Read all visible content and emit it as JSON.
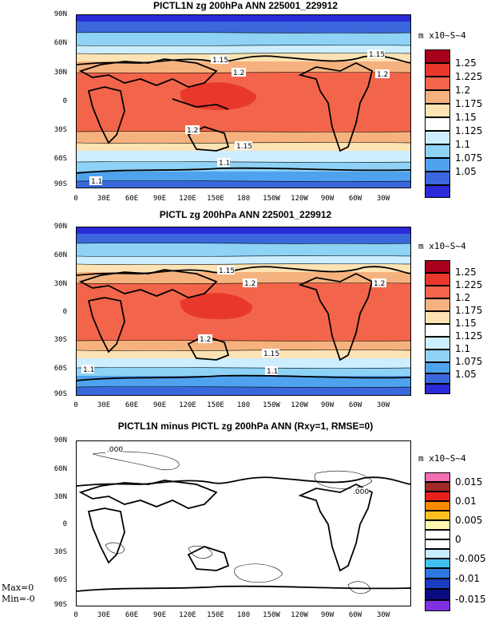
{
  "units": "m x10~S~4",
  "lat_ticks": [
    "90N",
    "60N",
    "30N",
    "0",
    "30S",
    "60S",
    "90S"
  ],
  "lon_ticks": [
    "0",
    "30E",
    "60E",
    "90E",
    "120E",
    "150E",
    "180",
    "150W",
    "120W",
    "90W",
    "60W",
    "30W"
  ],
  "panels": [
    {
      "title": "PICTL1N zg 200hPa ANN 225001_229912",
      "colorbar_labels": [
        "1.25",
        "1.225",
        "1.2",
        "1.175",
        "1.15",
        "1.125",
        "1.1",
        "1.075",
        "1.05"
      ],
      "colorbar_colors": [
        "#a8001c",
        "#e8382c",
        "#f2654a",
        "#f6b27e",
        "#fde3b4",
        "#ffffff",
        "#cceeff",
        "#8ed2f5",
        "#4fa2ee",
        "#3a68dc",
        "#2a2ad8"
      ],
      "contour_labels": [
        "1.15",
        "1.2",
        "1.15",
        "1.2",
        "1.2",
        "1.15",
        "1.1",
        "1.1"
      ]
    },
    {
      "title": "PICTL zg 200hPa ANN 225001_229912",
      "colorbar_labels": [
        "1.25",
        "1.225",
        "1.2",
        "1.175",
        "1.15",
        "1.125",
        "1.1",
        "1.075",
        "1.05"
      ],
      "colorbar_colors": [
        "#a8001c",
        "#e8382c",
        "#f2654a",
        "#f6b27e",
        "#fde3b4",
        "#ffffff",
        "#cceeff",
        "#8ed2f5",
        "#4fa2ee",
        "#3a68dc",
        "#2a2ad8"
      ],
      "contour_labels": [
        "1.15",
        "1.2",
        "1.2",
        "1.2",
        "1.15",
        "1.1",
        "1.1"
      ]
    },
    {
      "title": "PICTL1N minus PICTL zg 200hPa ANN (Rxy=1, RMSE=0)",
      "colorbar_labels": [
        "0.015",
        "0.01",
        "0.005",
        "0",
        "-0.005",
        "-0.01",
        "-0.015"
      ],
      "colorbar_colors": [
        "#f26fb2",
        "#a02a2a",
        "#e8201c",
        "#ff8a00",
        "#ffc020",
        "#fff6b0",
        "#ffffff",
        "#ffffff",
        "#c8ecff",
        "#40c0f0",
        "#2a78e0",
        "#1a3cc0",
        "#0a0a80",
        "#8030e0"
      ],
      "contour_labels": [
        ".000",
        ".000"
      ]
    }
  ],
  "stats": {
    "max": "Max=0",
    "min": "Min=-0"
  }
}
